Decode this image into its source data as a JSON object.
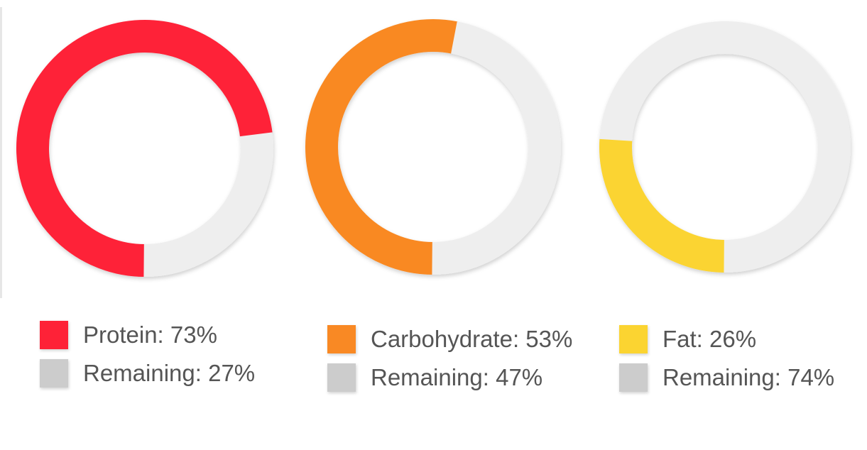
{
  "chart_data": [
    {
      "type": "pie",
      "slices": [
        {
          "name": "Protein",
          "value": 73,
          "color": "#fe2237",
          "legend_label": "Protein: 73%"
        },
        {
          "name": "Remaining",
          "value": 27,
          "color": "#eeeeee",
          "legend_color": "#cccccc",
          "legend_label": "Remaining: 27%"
        }
      ]
    },
    {
      "type": "pie",
      "slices": [
        {
          "name": "Carbohydrate",
          "value": 53,
          "color": "#f98924",
          "legend_label": "Carbohydrate: 53%"
        },
        {
          "name": "Remaining",
          "value": 47,
          "color": "#eeeeee",
          "legend_color": "#cccccc",
          "legend_label": "Remaining: 47%"
        }
      ]
    },
    {
      "type": "pie",
      "slices": [
        {
          "name": "Fat",
          "value": 26,
          "color": "#fbd431",
          "legend_label": "Fat: 26%"
        },
        {
          "name": "Remaining",
          "value": 74,
          "color": "#eeeeee",
          "legend_color": "#cccccc",
          "legend_label": "Remaining: 74%"
        }
      ]
    }
  ]
}
